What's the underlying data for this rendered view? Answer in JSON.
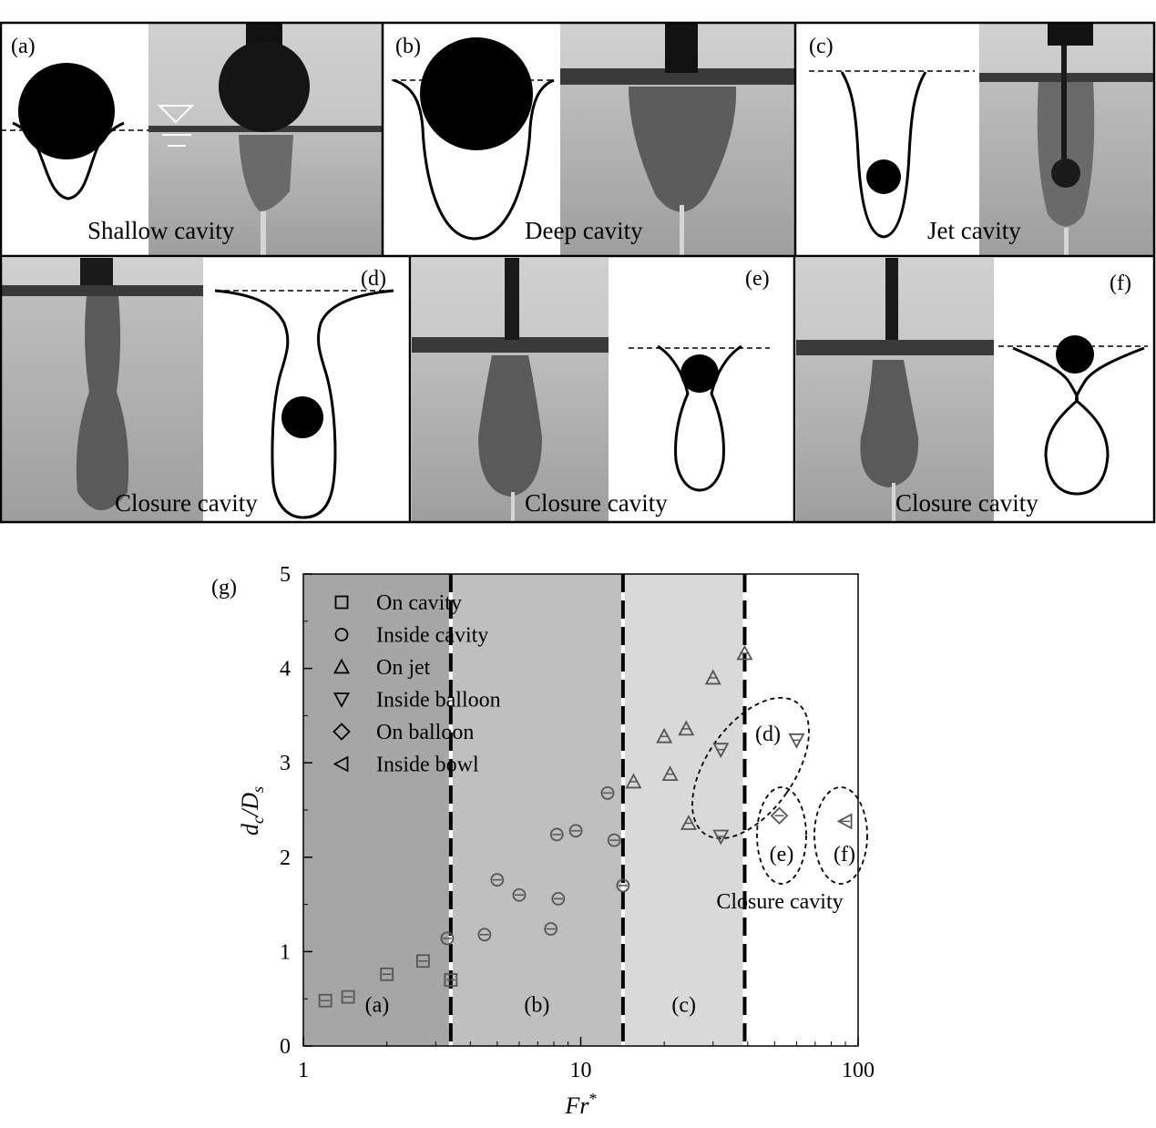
{
  "panels": [
    {
      "id": "a",
      "tag": "(a)",
      "caption": "Shallow cavity"
    },
    {
      "id": "b",
      "tag": "(b)",
      "caption": "Deep cavity"
    },
    {
      "id": "c",
      "tag": "(c)",
      "caption": "Jet cavity"
    },
    {
      "id": "d",
      "tag": "(d)",
      "caption": "Closure cavity"
    },
    {
      "id": "e",
      "tag": "(e)",
      "caption": "Closure cavity"
    },
    {
      "id": "f",
      "tag": "(f)",
      "caption": "Closure cavity"
    }
  ],
  "chart_data": {
    "type": "scatter",
    "panel_label": "(g)",
    "xlabel": "Fr*",
    "ylabel": "dc/Ds",
    "xscale": "log",
    "xlim": [
      1,
      100
    ],
    "ylim": [
      0,
      5
    ],
    "xticks": [
      1,
      10,
      100
    ],
    "xtick_labels": [
      "1",
      "10",
      "100"
    ],
    "yticks": [
      0,
      1,
      2,
      3,
      4,
      5
    ],
    "ytick_labels": [
      "0",
      "1",
      "2",
      "3",
      "4",
      "5"
    ],
    "grid": false,
    "legend_position": "top-left",
    "regimes": [
      {
        "label": "(a)",
        "x_range": [
          1,
          3.4
        ],
        "color": "#a6a6a6"
      },
      {
        "label": "(b)",
        "x_range": [
          3.4,
          14.2
        ],
        "color": "#bfbfbf"
      },
      {
        "label": "(c)",
        "x_range": [
          14.2,
          39
        ],
        "color": "#d9d9d9"
      }
    ],
    "boundaries": [
      3.4,
      14.2,
      39
    ],
    "series": [
      {
        "name": "On cavity",
        "marker": "square",
        "points": [
          [
            1.2,
            0.48
          ],
          [
            1.45,
            0.52
          ],
          [
            2.0,
            0.76
          ],
          [
            2.7,
            0.9
          ],
          [
            3.4,
            0.7
          ]
        ]
      },
      {
        "name": "Inside cavity",
        "marker": "circle",
        "points": [
          [
            3.3,
            1.14
          ],
          [
            4.5,
            1.18
          ],
          [
            5.0,
            1.76
          ],
          [
            6.0,
            1.6
          ],
          [
            7.8,
            1.24
          ],
          [
            8.2,
            2.24
          ],
          [
            8.3,
            1.56
          ],
          [
            9.6,
            2.28
          ],
          [
            12.5,
            2.68
          ],
          [
            13.2,
            2.18
          ],
          [
            14.2,
            1.7
          ]
        ]
      },
      {
        "name": "On jet",
        "marker": "triangle-up",
        "points": [
          [
            15.5,
            2.8
          ],
          [
            20,
            3.28
          ],
          [
            21,
            2.88
          ],
          [
            24,
            3.36
          ],
          [
            24.5,
            2.36
          ],
          [
            30,
            3.9
          ],
          [
            39,
            4.16
          ]
        ]
      },
      {
        "name": "Inside balloon",
        "marker": "triangle-down",
        "points": [
          [
            32,
            3.14
          ],
          [
            32,
            2.22
          ],
          [
            60,
            3.24
          ]
        ]
      },
      {
        "name": "On balloon",
        "marker": "diamond",
        "points": [
          [
            52,
            2.44
          ]
        ]
      },
      {
        "name": "Inside bowl",
        "marker": "triangle-left",
        "points": [
          [
            90,
            2.38
          ]
        ]
      }
    ],
    "annotations": [
      {
        "text": "(d)"
      },
      {
        "text": "(e)"
      },
      {
        "text": "(f)"
      },
      {
        "text": "Closure cavity"
      }
    ]
  }
}
